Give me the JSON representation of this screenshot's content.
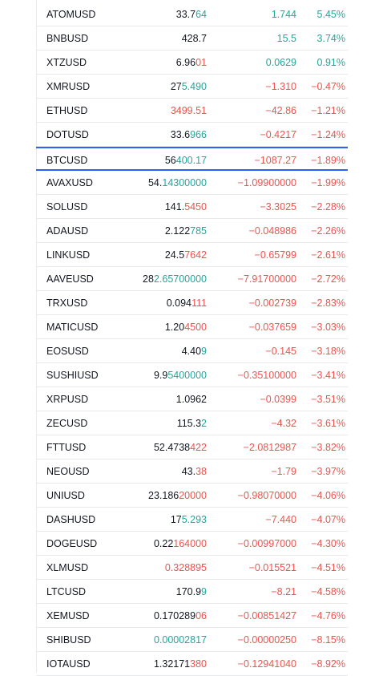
{
  "watchlist": {
    "rows": [
      {
        "symbol": "ATOMUSD",
        "last_a": "33.7",
        "last_b": "64",
        "last_dir": "up",
        "change": "1.744",
        "change_pct": "5.45%",
        "dir": "up"
      },
      {
        "symbol": "BNBUSD",
        "last_a": "428.7",
        "last_b": "",
        "last_dir": "neutral",
        "change": "15.5",
        "change_pct": "3.74%",
        "dir": "up"
      },
      {
        "symbol": "XTZUSD",
        "last_a": "6.96",
        "last_b": "01",
        "last_dir": "down",
        "change": "0.0629",
        "change_pct": "0.91%",
        "dir": "up"
      },
      {
        "symbol": "XMRUSD",
        "last_a": "27",
        "last_b": "5.490",
        "last_dir": "up",
        "change": "−1.310",
        "change_pct": "−0.47%",
        "dir": "down"
      },
      {
        "symbol": "ETHUSD",
        "last_a": "",
        "last_b": "3499.51",
        "last_dir": "down",
        "change": "−42.86",
        "change_pct": "−1.21%",
        "dir": "down"
      },
      {
        "symbol": "DOTUSD",
        "last_a": "33.6",
        "last_b": "966",
        "last_dir": "up",
        "change": "−0.4217",
        "change_pct": "−1.24%",
        "dir": "down"
      },
      {
        "symbol": "BTCUSD",
        "last_a": "56",
        "last_b": "400.17",
        "last_dir": "up",
        "change": "−1087.27",
        "change_pct": "−1.89%",
        "dir": "down",
        "selected": true
      },
      {
        "symbol": "AVAXUSD",
        "last_a": "54.",
        "last_b": "14300000",
        "last_dir": "up",
        "change": "−1.09900000",
        "change_pct": "−1.99%",
        "dir": "down"
      },
      {
        "symbol": "SOLUSD",
        "last_a": "141.",
        "last_b": "5450",
        "last_dir": "down",
        "change": "−3.3025",
        "change_pct": "−2.28%",
        "dir": "down"
      },
      {
        "symbol": "ADAUSD",
        "last_a": "2.122",
        "last_b": "785",
        "last_dir": "up",
        "change": "−0.048986",
        "change_pct": "−2.26%",
        "dir": "down"
      },
      {
        "symbol": "LINKUSD",
        "last_a": "24.5",
        "last_b": "7642",
        "last_dir": "down",
        "change": "−0.65799",
        "change_pct": "−2.61%",
        "dir": "down"
      },
      {
        "symbol": "AAVEUSD",
        "last_a": "28",
        "last_b": "2.65700000",
        "last_dir": "up",
        "change": "−7.91700000",
        "change_pct": "−2.72%",
        "dir": "down"
      },
      {
        "symbol": "TRXUSD",
        "last_a": "0.094",
        "last_b": "111",
        "last_dir": "down",
        "change": "−0.002739",
        "change_pct": "−2.83%",
        "dir": "down"
      },
      {
        "symbol": "MATICUSD",
        "last_a": "1.20",
        "last_b": "4500",
        "last_dir": "down",
        "change": "−0.037659",
        "change_pct": "−3.03%",
        "dir": "down"
      },
      {
        "symbol": "EOSUSD",
        "last_a": "4.40",
        "last_b": "9",
        "last_dir": "up",
        "change": "−0.145",
        "change_pct": "−3.18%",
        "dir": "down"
      },
      {
        "symbol": "SUSHIUSD",
        "last_a": "9.9",
        "last_b": "5400000",
        "last_dir": "up",
        "change": "−0.35100000",
        "change_pct": "−3.41%",
        "dir": "down"
      },
      {
        "symbol": "XRPUSD",
        "last_a": "1.0962",
        "last_b": "",
        "last_dir": "neutral",
        "change": "−0.0399",
        "change_pct": "−3.51%",
        "dir": "down"
      },
      {
        "symbol": "ZECUSD",
        "last_a": "115.3",
        "last_b": "2",
        "last_dir": "up",
        "change": "−4.32",
        "change_pct": "−3.61%",
        "dir": "down"
      },
      {
        "symbol": "FTTUSD",
        "last_a": "52.4738",
        "last_b": "422",
        "last_dir": "down",
        "change": "−2.0812987",
        "change_pct": "−3.82%",
        "dir": "down"
      },
      {
        "symbol": "NEOUSD",
        "last_a": "43.",
        "last_b": "38",
        "last_dir": "down",
        "change": "−1.79",
        "change_pct": "−3.97%",
        "dir": "down"
      },
      {
        "symbol": "UNIUSD",
        "last_a": "23.186",
        "last_b": "20000",
        "last_dir": "down",
        "change": "−0.98070000",
        "change_pct": "−4.06%",
        "dir": "down"
      },
      {
        "symbol": "DASHUSD",
        "last_a": "17",
        "last_b": "5.293",
        "last_dir": "up",
        "change": "−7.440",
        "change_pct": "−4.07%",
        "dir": "down"
      },
      {
        "symbol": "DOGEUSD",
        "last_a": "0.22",
        "last_b": "164000",
        "last_dir": "down",
        "change": "−0.00997000",
        "change_pct": "−4.30%",
        "dir": "down"
      },
      {
        "symbol": "XLMUSD",
        "last_a": "",
        "last_b": "0.328895",
        "last_dir": "down",
        "change": "−0.015521",
        "change_pct": "−4.51%",
        "dir": "down"
      },
      {
        "symbol": "LTCUSD",
        "last_a": "170.9",
        "last_b": "9",
        "last_dir": "up",
        "change": "−8.21",
        "change_pct": "−4.58%",
        "dir": "down"
      },
      {
        "symbol": "XEMUSD",
        "last_a": "0.170289",
        "last_b": "06",
        "last_dir": "down",
        "change": "−0.00851427",
        "change_pct": "−4.76%",
        "dir": "down"
      },
      {
        "symbol": "SHIBUSD",
        "last_a": "",
        "last_b": "0.00002817",
        "last_dir": "up",
        "change": "−0.00000250",
        "change_pct": "−8.15%",
        "dir": "down"
      },
      {
        "symbol": "IOTAUSD",
        "last_a": "1.32171",
        "last_b": "380",
        "last_dir": "down",
        "change": "−0.12941040",
        "change_pct": "−8.92%",
        "dir": "down"
      }
    ]
  }
}
